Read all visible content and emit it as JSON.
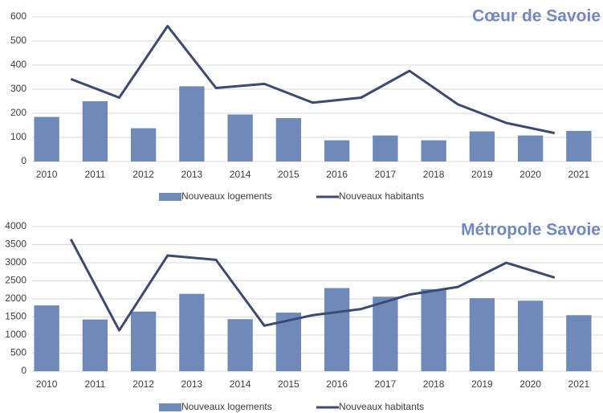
{
  "chart_data": [
    {
      "type": "combo",
      "title": "Cœur de Savoie",
      "categories": [
        "2010",
        "2011",
        "2012",
        "2013",
        "2014",
        "2015",
        "2016",
        "2017",
        "2018",
        "2019",
        "2020",
        "2021"
      ],
      "series": [
        {
          "name": "Nouveaux logements",
          "type": "bar",
          "color": "#6f89b8",
          "values": [
            185,
            250,
            138,
            312,
            195,
            180,
            88,
            108,
            88,
            125,
            108,
            127
          ]
        },
        {
          "name": "Nouveaux habitants",
          "type": "line",
          "color": "#3b4b72",
          "values": [
            342,
            265,
            562,
            305,
            322,
            244,
            265,
            376,
            237,
            160,
            118,
            null
          ]
        }
      ],
      "ylim": [
        0,
        600
      ],
      "yticks": [
        0,
        100,
        200,
        300,
        400,
        500,
        600
      ],
      "grid": true,
      "legend": "bottom"
    },
    {
      "type": "combo",
      "title": "Métropole Savoie",
      "categories": [
        "2010",
        "2011",
        "2012",
        "2013",
        "2014",
        "2015",
        "2016",
        "2017",
        "2018",
        "2019",
        "2020",
        "2021"
      ],
      "series": [
        {
          "name": "Nouveaux logements",
          "type": "bar",
          "color": "#6f89b8",
          "values": [
            1820,
            1430,
            1650,
            2140,
            1440,
            1620,
            2300,
            2060,
            2270,
            2020,
            1950,
            1550
          ]
        },
        {
          "name": "Nouveaux habitants",
          "type": "line",
          "color": "#3b4b72",
          "values": [
            3650,
            1130,
            3200,
            3080,
            1260,
            1550,
            1720,
            2120,
            2330,
            3000,
            2590,
            null
          ]
        }
      ],
      "ylim": [
        0,
        4000
      ],
      "yticks": [
        0,
        500,
        1000,
        1500,
        2000,
        2500,
        3000,
        3500,
        4000
      ],
      "grid": true,
      "legend": "bottom"
    }
  ]
}
